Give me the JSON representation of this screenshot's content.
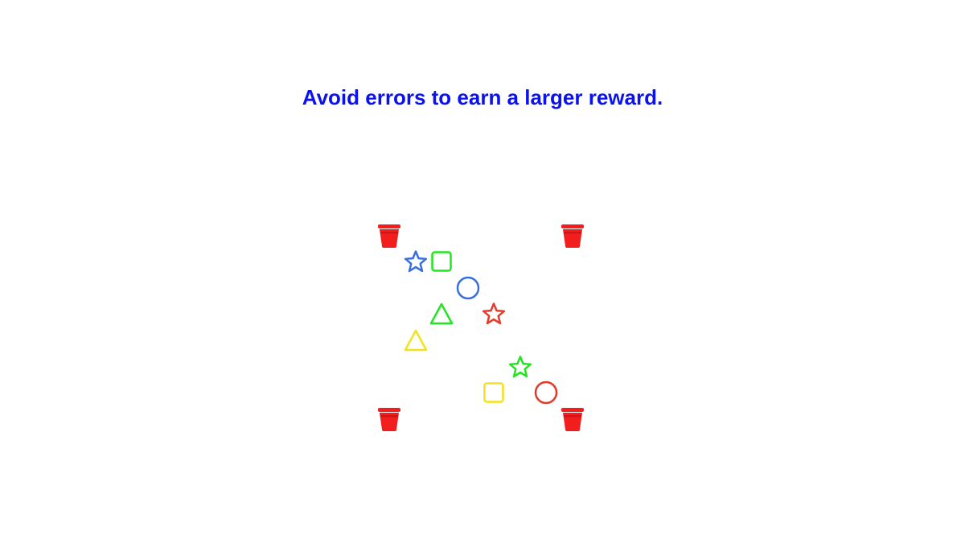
{
  "instruction": {
    "text": "Avoid errors to earn a larger reward.",
    "color": "#0a12f0"
  },
  "colors": {
    "blue": "#3a6fe0",
    "green": "#22e522",
    "red": "#e33a2a",
    "yellow": "#f2e21e",
    "cup": "#f21d1d",
    "cup_rim": "#d41414"
  },
  "cups": [
    {
      "name": "cup-top-left",
      "icon": "red-cup-icon"
    },
    {
      "name": "cup-top-right",
      "icon": "red-cup-icon"
    },
    {
      "name": "cup-bottom-left",
      "icon": "red-cup-icon"
    },
    {
      "name": "cup-bottom-right",
      "icon": "red-cup-icon"
    }
  ],
  "pieces": [
    {
      "shape": "star",
      "color": "blue"
    },
    {
      "shape": "square",
      "color": "green"
    },
    {
      "shape": "circle",
      "color": "blue"
    },
    {
      "shape": "triangle",
      "color": "green"
    },
    {
      "shape": "star",
      "color": "red"
    },
    {
      "shape": "triangle",
      "color": "yellow"
    },
    {
      "shape": "star",
      "color": "green"
    },
    {
      "shape": "square",
      "color": "yellow"
    },
    {
      "shape": "circle",
      "color": "red"
    }
  ]
}
